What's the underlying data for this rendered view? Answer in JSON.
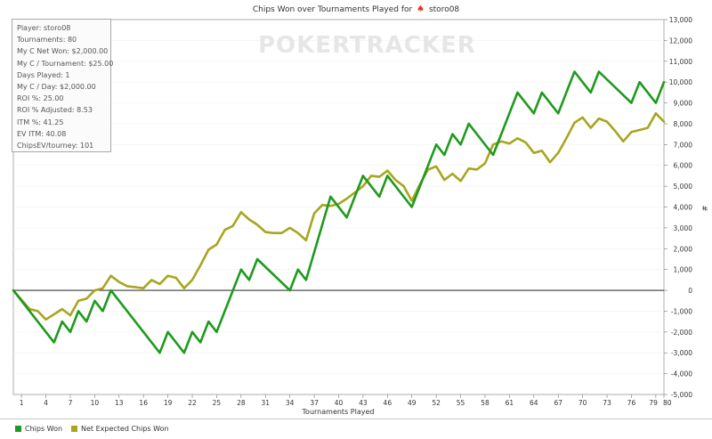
{
  "title": "Chips Won over Tournaments Played for",
  "player_name": "storo08",
  "stats": [
    "Player: storo08",
    "Tournaments: 80",
    "My C Net Won: $2,000.00",
    "My C / Tournament: $25.00",
    "Days Played: 1",
    "My C / Day: $2,000.00",
    "ROI %: 25.00",
    "ROI % Adjusted: 8.53",
    "ITM %: 41.25",
    "EV ITM: 40.08",
    "ChipsEV/tourney: 101"
  ],
  "watermark": "POKERTRACKER",
  "colors": {
    "chips_won": "#1e9a1e",
    "net_expected": "#a6a620",
    "axis": "#000000"
  },
  "legend": {
    "chips_won": "Chips Won",
    "net_expected": "Net Expected Chips Won"
  },
  "chart_data": {
    "type": "line",
    "xlabel": "Tournaments Played",
    "ylabel": "#",
    "xlim": [
      0,
      80
    ],
    "ylim": [
      -5000,
      13000
    ],
    "x_ticks": [
      1,
      4,
      7,
      10,
      13,
      16,
      19,
      22,
      25,
      28,
      31,
      34,
      37,
      40,
      43,
      46,
      49,
      52,
      55,
      58,
      61,
      64,
      67,
      70,
      73,
      76,
      79,
      80
    ],
    "y_ticks": [
      -5000,
      -4000,
      -3000,
      -2000,
      -1000,
      0,
      1000,
      2000,
      3000,
      4000,
      5000,
      6000,
      7000,
      8000,
      9000,
      10000,
      11000,
      12000,
      13000
    ],
    "y_tick_labels": [
      "-5,000",
      "-4,000",
      "-3,000",
      "-2,000",
      "-1,000",
      "0",
      "1,000",
      "2,000",
      "3,000",
      "4,000",
      "5,000",
      "6,000",
      "7,000",
      "8,000",
      "9,000",
      "10,000",
      "11,000",
      "12,000",
      "13,000"
    ],
    "series": [
      {
        "name": "Chips Won",
        "x": [
          0,
          5,
          6,
          7,
          8,
          9,
          10,
          11,
          12,
          18,
          19,
          21,
          22,
          23,
          24,
          25,
          28,
          29,
          30,
          34,
          35,
          36,
          39,
          41,
          43,
          45,
          46,
          49,
          52,
          53,
          54,
          55,
          56,
          59,
          62,
          64,
          65,
          67,
          69,
          71,
          72,
          76,
          77,
          79,
          80
        ],
        "y": [
          0,
          -2500,
          -1500,
          -2000,
          -1000,
          -1500,
          -500,
          -1000,
          0,
          -3000,
          -2000,
          -3000,
          -2000,
          -2500,
          -1500,
          -2000,
          1000,
          500,
          1500,
          0,
          1000,
          500,
          4500,
          3500,
          5500,
          4500,
          5500,
          4000,
          7000,
          6500,
          7500,
          7000,
          8000,
          6500,
          9500,
          8500,
          9500,
          8500,
          10500,
          9500,
          10500,
          9000,
          10000,
          9000,
          10000
        ]
      },
      {
        "name": "Net Expected Chips Won",
        "x": [
          0,
          2,
          3,
          4,
          6,
          7,
          8,
          9,
          10,
          11,
          12,
          13,
          14,
          15,
          16,
          17,
          18,
          19,
          20,
          21,
          22,
          23,
          24,
          25,
          26,
          27,
          28,
          29,
          30,
          31,
          32,
          33,
          34,
          35,
          36,
          37,
          38,
          39,
          40,
          41,
          42,
          43,
          44,
          45,
          46,
          47,
          48,
          49,
          50,
          51,
          52,
          53,
          54,
          55,
          56,
          57,
          58,
          59,
          60,
          61,
          62,
          63,
          64,
          65,
          66,
          67,
          68,
          69,
          70,
          71,
          72,
          73,
          74,
          75,
          76,
          77,
          78,
          79,
          80
        ],
        "y": [
          0,
          -900,
          -1000,
          -1400,
          -900,
          -1200,
          -500,
          -400,
          0,
          100,
          700,
          400,
          200,
          150,
          100,
          500,
          300,
          700,
          600,
          100,
          500,
          1200,
          1950,
          2200,
          2900,
          3100,
          3750,
          3400,
          3150,
          2800,
          2750,
          2750,
          3000,
          2750,
          2400,
          3700,
          4100,
          4050,
          4150,
          4400,
          4700,
          5000,
          5500,
          5450,
          5750,
          5300,
          5000,
          4300,
          5100,
          5800,
          5950,
          5300,
          5600,
          5250,
          5850,
          5800,
          6100,
          7000,
          7150,
          7050,
          7300,
          7100,
          6600,
          6700,
          6150,
          6600,
          7300,
          8050,
          8300,
          7800,
          8250,
          8100,
          7650,
          7150,
          7600,
          7700,
          7800,
          8500,
          8100
        ]
      }
    ]
  }
}
